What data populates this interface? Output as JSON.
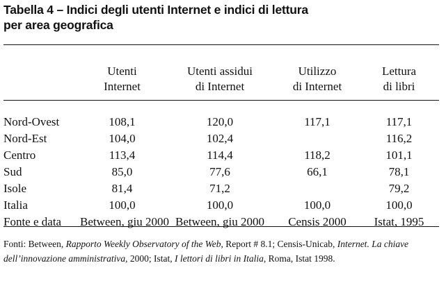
{
  "title": {
    "line1": "Tabella 4 – Indici degli utenti Internet e indici di lettura",
    "line2": "per area geografica"
  },
  "table": {
    "headers": [
      {
        "line1": "",
        "line2": ""
      },
      {
        "line1": "Utenti",
        "line2": "Internet"
      },
      {
        "line1": "Utenti assidui",
        "line2": "di Internet"
      },
      {
        "line1": "Utilizzo",
        "line2": "di Internet"
      },
      {
        "line1": "Lettura",
        "line2": "di libri"
      }
    ],
    "rows": [
      {
        "area": "Nord-Ovest",
        "utenti": "108,1",
        "assidui": "120,0",
        "utilizzo": "117,1",
        "lettura": "117,1"
      },
      {
        "area": "Nord-Est",
        "utenti": "104,0",
        "assidui": "102,4",
        "utilizzo": "",
        "lettura": "116,2"
      },
      {
        "area": "Centro",
        "utenti": "113,4",
        "assidui": "114,4",
        "utilizzo": "118,2",
        "lettura": "101,1"
      },
      {
        "area": "Sud",
        "utenti": "85,0",
        "assidui": "77,6",
        "utilizzo": "66,1",
        "lettura": "78,1"
      },
      {
        "area": "Isole",
        "utenti": "81,4",
        "assidui": "71,2",
        "utilizzo": "",
        "lettura": "79,2"
      },
      {
        "area": "Italia",
        "utenti": "100,0",
        "assidui": "100,0",
        "utilizzo": "100,0",
        "lettura": "100,0"
      }
    ],
    "source_row": {
      "label": "Fonte e data",
      "utenti": "Between, giu 2000",
      "assidui": "Between, giu 2000",
      "utilizzo": "Censis 2000",
      "lettura": "Istat, 1995"
    }
  },
  "footnote": {
    "p1": "Fonti: Between, ",
    "i1": "Rapporto Weekly Observatory of the Web",
    "p2": ", Report # 8.1; Censis-Unicab, ",
    "i2": "Internet. La chiave dell’innovazione amministrativa",
    "p3": ", 2000; Istat, ",
    "i3": "I lettori di libri in Italia",
    "p4": ", Roma, Istat 1998."
  }
}
